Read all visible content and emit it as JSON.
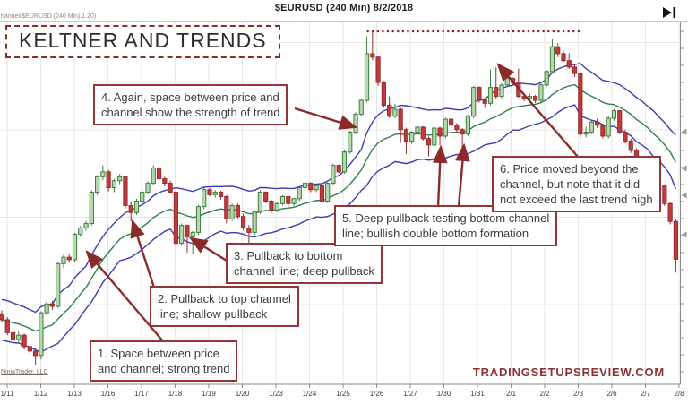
{
  "header": {
    "title": "$EURUSD (240 Min)  8/2/2018",
    "indicator_label": "hannel($EURUSD (240 Min),1.20)"
  },
  "title_box": {
    "label": "KELTNER AND TRENDS"
  },
  "annotations": [
    {
      "id": 1,
      "lines": [
        "1. Space between price",
        "and channel; strong trend"
      ]
    },
    {
      "id": 2,
      "lines": [
        "2. Pullback to top channel",
        "line; shallow pullback"
      ]
    },
    {
      "id": 3,
      "lines": [
        "3. Pullback to bottom",
        "channel line; deep pullback"
      ]
    },
    {
      "id": 4,
      "lines": [
        "4. Again, space between price and",
        "channel show the strength of trend"
      ]
    },
    {
      "id": 5,
      "lines": [
        "5. Deep pullback testing bottom channel",
        "line; bullish double bottom formation"
      ]
    },
    {
      "id": 6,
      "lines": [
        "6. Price moved beyond the",
        "channel, but note that it did",
        "not exceed the last trend high"
      ]
    }
  ],
  "watermarks": {
    "site": "TRADINGSETUPSREVIEW.COM",
    "platform": "NinjaTrader, LLC"
  },
  "colors": {
    "bull_fill": "#b5d8ae",
    "bull_border": "#417d41",
    "bear_fill": "#c23b3b",
    "bear_border": "#952b2b",
    "channel_band": "#3d3dae",
    "channel_mid": "#2e7d4f",
    "grid": "#e7e7e7",
    "axis": "#8a8a8a",
    "axis_text": "#3a3a3a",
    "trend_high_dotted": "#8b1e1e",
    "arrow": "#8b2a2a"
  },
  "chart_data": {
    "type": "candlestick",
    "symbol": "$EURUSD",
    "timeframe": "240 Min",
    "date_shown": "8/2/2018",
    "title": "KELTNER AND TRENDS",
    "x_axis_labels": [
      "1/11",
      "1/12",
      "1/13",
      "1/16",
      "1/17",
      "1/18",
      "1/19",
      "1/20",
      "1/23",
      "1/24",
      "1/25",
      "1/26",
      "1/27",
      "1/30",
      "1/31",
      "2/1",
      "2/2",
      "2/3",
      "2/6",
      "2/7",
      "2/8"
    ],
    "y_axis": {
      "price_top": 1.26,
      "price_bottom": 1.1871,
      "labels_visible": false
    },
    "grid": true,
    "keltner_channel": {
      "ema_period": 20,
      "atr_period": 10,
      "multiplier": 1.2
    },
    "trend_high_line": {
      "price": 1.2582,
      "from_candle": 65,
      "to_candle": 103,
      "style": "dotted"
    },
    "candles": [
      [
        1.2013,
        1.202,
        1.1995,
        1.2001
      ],
      [
        1.2001,
        1.2006,
        1.197,
        1.1975
      ],
      [
        1.1975,
        1.1981,
        1.1955,
        1.1961
      ],
      [
        1.1961,
        1.1977,
        1.1956,
        1.197
      ],
      [
        1.197,
        1.1973,
        1.1941,
        1.1947
      ],
      [
        1.1947,
        1.1954,
        1.1929,
        1.1938
      ],
      [
        1.1938,
        1.1945,
        1.1911,
        1.1929
      ],
      [
        1.1929,
        1.2018,
        1.1921,
        1.2015
      ],
      [
        1.2015,
        1.2038,
        1.201,
        1.2033
      ],
      [
        1.2033,
        1.2039,
        1.2021,
        1.2028
      ],
      [
        1.2028,
        1.2117,
        1.2025,
        1.2114
      ],
      [
        1.2114,
        1.2132,
        1.2105,
        1.2127
      ],
      [
        1.2127,
        1.2133,
        1.2116,
        1.2122
      ],
      [
        1.2122,
        1.2176,
        1.2118,
        1.2173
      ],
      [
        1.2173,
        1.219,
        1.2168,
        1.2186
      ],
      [
        1.2186,
        1.22,
        1.218,
        1.2195
      ],
      [
        1.2195,
        1.2262,
        1.2191,
        1.2258
      ],
      [
        1.2258,
        1.2292,
        1.2252,
        1.2289
      ],
      [
        1.2289,
        1.2312,
        1.2282,
        1.2299
      ],
      [
        1.2299,
        1.2303,
        1.226,
        1.2267
      ],
      [
        1.2267,
        1.2285,
        1.2258,
        1.2281
      ],
      [
        1.2281,
        1.2295,
        1.2274,
        1.2289
      ],
      [
        1.2289,
        1.2291,
        1.2225,
        1.2231
      ],
      [
        1.2231,
        1.224,
        1.2199,
        1.2217
      ],
      [
        1.2217,
        1.2245,
        1.2212,
        1.224
      ],
      [
        1.224,
        1.2263,
        1.2236,
        1.2258
      ],
      [
        1.2258,
        1.228,
        1.2254,
        1.2276
      ],
      [
        1.2276,
        1.2312,
        1.2272,
        1.2307
      ],
      [
        1.2307,
        1.2309,
        1.228,
        1.2285
      ],
      [
        1.2285,
        1.2289,
        1.227,
        1.2276
      ],
      [
        1.2276,
        1.2281,
        1.2255,
        1.2258
      ],
      [
        1.2258,
        1.2262,
        1.2148,
        1.2155
      ],
      [
        1.2155,
        1.2195,
        1.215,
        1.2191
      ],
      [
        1.2191,
        1.2193,
        1.2136,
        1.2168
      ],
      [
        1.2168,
        1.218,
        1.2133,
        1.2177
      ],
      [
        1.2177,
        1.2232,
        1.2172,
        1.2229
      ],
      [
        1.2229,
        1.2267,
        1.2224,
        1.2263
      ],
      [
        1.2263,
        1.2266,
        1.225,
        1.2253
      ],
      [
        1.2253,
        1.2262,
        1.2247,
        1.2258
      ],
      [
        1.2258,
        1.2261,
        1.2243,
        1.2249
      ],
      [
        1.2249,
        1.2252,
        1.2195,
        1.2204
      ],
      [
        1.2204,
        1.2235,
        1.22,
        1.2231
      ],
      [
        1.2231,
        1.2235,
        1.2205,
        1.2209
      ],
      [
        1.2209,
        1.2215,
        1.2181,
        1.2186
      ],
      [
        1.2186,
        1.2192,
        1.215,
        1.2177
      ],
      [
        1.2177,
        1.2222,
        1.2172,
        1.2218
      ],
      [
        1.2218,
        1.2262,
        1.2214,
        1.2258
      ],
      [
        1.2258,
        1.226,
        1.2236,
        1.224
      ],
      [
        1.224,
        1.2243,
        1.2216,
        1.2222
      ],
      [
        1.2222,
        1.2238,
        1.2218,
        1.2235
      ],
      [
        1.2235,
        1.2252,
        1.2231,
        1.2249
      ],
      [
        1.2249,
        1.2251,
        1.2228,
        1.2235
      ],
      [
        1.2235,
        1.2247,
        1.223,
        1.2245
      ],
      [
        1.2245,
        1.227,
        1.224,
        1.2267
      ],
      [
        1.2267,
        1.2279,
        1.2262,
        1.2276
      ],
      [
        1.2276,
        1.2278,
        1.2258,
        1.2263
      ],
      [
        1.2263,
        1.2274,
        1.2258,
        1.2271
      ],
      [
        1.2271,
        1.2273,
        1.2238,
        1.224
      ],
      [
        1.224,
        1.2278,
        1.2236,
        1.2276
      ],
      [
        1.2276,
        1.2315,
        1.2272,
        1.2312
      ],
      [
        1.2312,
        1.2314,
        1.2296,
        1.2299
      ],
      [
        1.2299,
        1.2342,
        1.2295,
        1.2339
      ],
      [
        1.2339,
        1.2382,
        1.2335,
        1.2379
      ],
      [
        1.2379,
        1.2419,
        1.2375,
        1.2415
      ],
      [
        1.2415,
        1.2447,
        1.2411,
        1.2443
      ],
      [
        1.2443,
        1.2572,
        1.2439,
        1.2537
      ],
      [
        1.2537,
        1.2583,
        1.2524,
        1.253
      ],
      [
        1.253,
        1.2533,
        1.2472,
        1.2479
      ],
      [
        1.2479,
        1.2482,
        1.2428,
        1.2433
      ],
      [
        1.2433,
        1.2451,
        1.2408,
        1.2411
      ],
      [
        1.2411,
        1.2436,
        1.2407,
        1.2425
      ],
      [
        1.2425,
        1.2428,
        1.2357,
        1.2384
      ],
      [
        1.2384,
        1.2388,
        1.2335,
        1.2361
      ],
      [
        1.2361,
        1.2381,
        1.2355,
        1.2379
      ],
      [
        1.2379,
        1.2392,
        1.2374,
        1.2389
      ],
      [
        1.2389,
        1.2391,
        1.2362,
        1.2366
      ],
      [
        1.2366,
        1.237,
        1.233,
        1.2353
      ],
      [
        1.2353,
        1.239,
        1.2348,
        1.2387
      ],
      [
        1.2387,
        1.239,
        1.2352,
        1.2371
      ],
      [
        1.2371,
        1.2408,
        1.2366,
        1.2405
      ],
      [
        1.2405,
        1.2407,
        1.2385,
        1.2393
      ],
      [
        1.2393,
        1.2397,
        1.2378,
        1.2384
      ],
      [
        1.2384,
        1.2387,
        1.2346,
        1.2375
      ],
      [
        1.2375,
        1.2414,
        1.2371,
        1.2411
      ],
      [
        1.2411,
        1.2472,
        1.2407,
        1.2469
      ],
      [
        1.2469,
        1.2471,
        1.2438,
        1.2443
      ],
      [
        1.2443,
        1.2448,
        1.2428,
        1.2437
      ],
      [
        1.2437,
        1.2505,
        1.2433,
        1.2469
      ],
      [
        1.2469,
        1.2509,
        1.2445,
        1.2451
      ],
      [
        1.2451,
        1.2477,
        1.2447,
        1.2474
      ],
      [
        1.2474,
        1.249,
        1.247,
        1.2487
      ],
      [
        1.2487,
        1.2489,
        1.2475,
        1.2479
      ],
      [
        1.2479,
        1.2507,
        1.2448,
        1.2451
      ],
      [
        1.2451,
        1.2457,
        1.2441,
        1.2447
      ],
      [
        1.2447,
        1.2456,
        1.2442,
        1.2451
      ],
      [
        1.2451,
        1.2454,
        1.2437,
        1.2443
      ],
      [
        1.2443,
        1.2477,
        1.2439,
        1.2474
      ],
      [
        1.2474,
        1.2504,
        1.247,
        1.2501
      ],
      [
        1.2501,
        1.2567,
        1.2497,
        1.2551
      ],
      [
        1.2551,
        1.2558,
        1.253,
        1.2537
      ],
      [
        1.2537,
        1.2543,
        1.2519,
        1.2523
      ],
      [
        1.2523,
        1.2538,
        1.2506,
        1.251
      ],
      [
        1.251,
        1.2515,
        1.249,
        1.2497
      ],
      [
        1.2497,
        1.2501,
        1.2368,
        1.2375
      ],
      [
        1.2375,
        1.239,
        1.2368,
        1.2379
      ],
      [
        1.2379,
        1.2403,
        1.2375,
        1.2399
      ],
      [
        1.2399,
        1.2406,
        1.2388,
        1.2393
      ],
      [
        1.2393,
        1.2396,
        1.2366,
        1.2371
      ],
      [
        1.2371,
        1.2411,
        1.2366,
        1.2407
      ],
      [
        1.2407,
        1.2426,
        1.2402,
        1.2422
      ],
      [
        1.2422,
        1.2424,
        1.2375,
        1.2379
      ],
      [
        1.2379,
        1.2384,
        1.2356,
        1.2361
      ],
      [
        1.2361,
        1.2366,
        1.2337,
        1.2342
      ],
      [
        1.2342,
        1.2346,
        1.2299,
        1.2303
      ],
      [
        1.2303,
        1.233,
        1.2298,
        1.2326
      ],
      [
        1.2326,
        1.2329,
        1.2297,
        1.2301
      ],
      [
        1.2301,
        1.2304,
        1.2245,
        1.2263
      ],
      [
        1.2263,
        1.2276,
        1.2256,
        1.2272
      ],
      [
        1.2272,
        1.2274,
        1.223,
        1.2235
      ],
      [
        1.2235,
        1.2238,
        1.2193,
        1.2199
      ],
      [
        1.2199,
        1.2203,
        1.2096,
        1.2123
      ]
    ]
  }
}
